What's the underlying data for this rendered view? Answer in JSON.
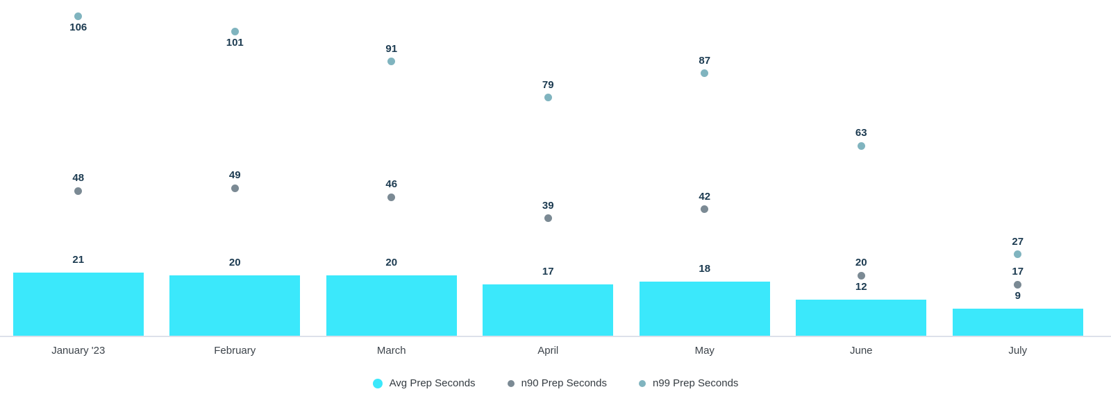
{
  "chart_data": {
    "type": "bar",
    "title": "",
    "xlabel": "",
    "ylabel": "",
    "categories": [
      "January '23",
      "February",
      "March",
      "April",
      "May",
      "June",
      "July"
    ],
    "series": [
      {
        "name": "Avg Prep Seconds",
        "kind": "bar",
        "color": "#3be8fb",
        "values": [
          21,
          20,
          20,
          17,
          18,
          12,
          9
        ]
      },
      {
        "name": "n90 Prep Seconds",
        "kind": "point",
        "color": "#7b8a94",
        "values": [
          48,
          49,
          46,
          39,
          42,
          20,
          17
        ]
      },
      {
        "name": "n99 Prep Seconds",
        "kind": "point",
        "color": "#80b4bf",
        "values": [
          106,
          101,
          91,
          79,
          87,
          63,
          27
        ]
      }
    ],
    "ylim": [
      0,
      111
    ],
    "grid": false,
    "data_labels": true,
    "legend_position": "bottom"
  },
  "colors": {
    "data_label": "#1b3a50",
    "axis_line": "#dde1ea",
    "month_label": "#3c434a",
    "legend_text": "#343b41",
    "background": "#ffffff"
  }
}
